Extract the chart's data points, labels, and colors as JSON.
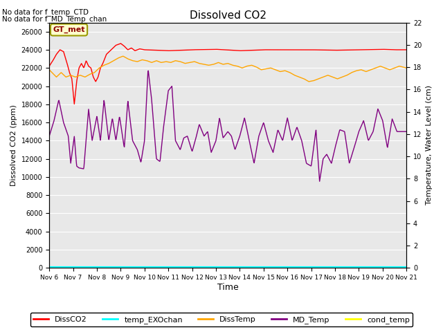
{
  "title": "Dissolved CO2",
  "text_no_data_1": "No data for f_temp_CTD",
  "text_no_data_2": "No data for f_MD_Temp_chan",
  "gt_met_label": "GT_met",
  "xlabel": "Time",
  "ylabel_left": "Dissolved CO2 (ppm)",
  "ylabel_right": "Temperature, Water Level (cm)",
  "xlim": [
    0,
    15
  ],
  "ylim_left": [
    0,
    27000
  ],
  "ylim_right": [
    0,
    22
  ],
  "yticks_left": [
    0,
    2000,
    4000,
    6000,
    8000,
    10000,
    12000,
    14000,
    16000,
    18000,
    20000,
    22000,
    24000,
    26000
  ],
  "yticks_right_vals": [
    0,
    2,
    4,
    6,
    8,
    10,
    12,
    14,
    16,
    18,
    20,
    22
  ],
  "x_ticks_labels": [
    "Nov 6",
    "Nov 7",
    "Nov 8",
    "Nov 9",
    "Nov 10",
    "Nov 11",
    "Nov 12",
    "Nov 13",
    "Nov 14",
    "Nov 15",
    "Nov 16",
    "Nov 17",
    "Nov 18",
    "Nov 19",
    "Nov 20",
    "Nov 21"
  ],
  "background_color": "#e8e8e8",
  "legend_entries": [
    "DissCO2",
    "temp_EXOchan",
    "DissTemp",
    "MD_Temp",
    "cond_temp"
  ],
  "legend_colors": [
    "red",
    "cyan",
    "orange",
    "purple",
    "yellow"
  ],
  "DissCO2_color": "red",
  "DissTemp_color": "orange",
  "MD_Temp_color": "purple",
  "cond_temp_color": "yellow",
  "temp_EXOchan_color": "cyan",
  "gt_met_facecolor": "#ffffcc",
  "gt_met_edgecolor": "#999900",
  "gt_met_textcolor": "#8b0000",
  "DissCO2_kp": [
    [
      0.0,
      22200
    ],
    [
      0.15,
      22800
    ],
    [
      0.3,
      23500
    ],
    [
      0.45,
      24000
    ],
    [
      0.6,
      23800
    ],
    [
      0.75,
      22500
    ],
    [
      0.85,
      21500
    ],
    [
      0.95,
      20800
    ],
    [
      1.05,
      18000
    ],
    [
      1.15,
      20500
    ],
    [
      1.25,
      22000
    ],
    [
      1.35,
      22500
    ],
    [
      1.45,
      22000
    ],
    [
      1.55,
      22800
    ],
    [
      1.65,
      22200
    ],
    [
      1.75,
      22000
    ],
    [
      1.85,
      21000
    ],
    [
      1.95,
      20500
    ],
    [
      2.05,
      21000
    ],
    [
      2.15,
      22000
    ],
    [
      2.25,
      22500
    ],
    [
      2.4,
      23500
    ],
    [
      2.6,
      24000
    ],
    [
      2.8,
      24500
    ],
    [
      3.0,
      24700
    ],
    [
      3.15,
      24400
    ],
    [
      3.3,
      24000
    ],
    [
      3.45,
      24200
    ],
    [
      3.6,
      23900
    ],
    [
      3.8,
      24100
    ],
    [
      4.0,
      24000
    ],
    [
      5.0,
      23900
    ],
    [
      6.0,
      24000
    ],
    [
      7.0,
      24050
    ],
    [
      8.0,
      23900
    ],
    [
      9.0,
      24000
    ],
    [
      10.0,
      24000
    ],
    [
      11.0,
      24000
    ],
    [
      12.0,
      23950
    ],
    [
      13.0,
      24000
    ],
    [
      14.0,
      24050
    ],
    [
      14.5,
      24000
    ],
    [
      15.0,
      24000
    ]
  ],
  "DissTemp_kp": [
    [
      0.0,
      21800
    ],
    [
      0.3,
      21000
    ],
    [
      0.5,
      21500
    ],
    [
      0.7,
      21000
    ],
    [
      0.9,
      21200
    ],
    [
      1.1,
      21000
    ],
    [
      1.3,
      21200
    ],
    [
      1.5,
      21000
    ],
    [
      1.7,
      21300
    ],
    [
      1.9,
      21500
    ],
    [
      2.1,
      22000
    ],
    [
      2.3,
      22300
    ],
    [
      2.5,
      22500
    ],
    [
      2.7,
      22800
    ],
    [
      2.9,
      23100
    ],
    [
      3.1,
      23300
    ],
    [
      3.3,
      23000
    ],
    [
      3.5,
      22800
    ],
    [
      3.7,
      22700
    ],
    [
      3.9,
      22900
    ],
    [
      4.1,
      22800
    ],
    [
      4.3,
      22600
    ],
    [
      4.5,
      22800
    ],
    [
      4.7,
      22600
    ],
    [
      4.9,
      22700
    ],
    [
      5.1,
      22600
    ],
    [
      5.3,
      22800
    ],
    [
      5.5,
      22700
    ],
    [
      5.7,
      22500
    ],
    [
      5.9,
      22600
    ],
    [
      6.1,
      22700
    ],
    [
      6.3,
      22500
    ],
    [
      6.5,
      22400
    ],
    [
      6.7,
      22300
    ],
    [
      6.9,
      22400
    ],
    [
      7.1,
      22600
    ],
    [
      7.3,
      22400
    ],
    [
      7.5,
      22500
    ],
    [
      7.7,
      22300
    ],
    [
      7.9,
      22200
    ],
    [
      8.1,
      22000
    ],
    [
      8.3,
      22200
    ],
    [
      8.5,
      22300
    ],
    [
      8.7,
      22100
    ],
    [
      8.9,
      21800
    ],
    [
      9.1,
      21900
    ],
    [
      9.3,
      22000
    ],
    [
      9.5,
      21800
    ],
    [
      9.7,
      21600
    ],
    [
      9.9,
      21700
    ],
    [
      10.1,
      21500
    ],
    [
      10.3,
      21200
    ],
    [
      10.5,
      21000
    ],
    [
      10.7,
      20800
    ],
    [
      10.9,
      20500
    ],
    [
      11.1,
      20600
    ],
    [
      11.3,
      20800
    ],
    [
      11.5,
      21000
    ],
    [
      11.7,
      21200
    ],
    [
      11.9,
      21000
    ],
    [
      12.1,
      20800
    ],
    [
      12.3,
      21000
    ],
    [
      12.5,
      21200
    ],
    [
      12.7,
      21500
    ],
    [
      12.9,
      21700
    ],
    [
      13.1,
      21800
    ],
    [
      13.3,
      21600
    ],
    [
      13.5,
      21800
    ],
    [
      13.7,
      22000
    ],
    [
      13.9,
      22200
    ],
    [
      14.1,
      22000
    ],
    [
      14.3,
      21800
    ],
    [
      14.5,
      22000
    ],
    [
      14.7,
      22200
    ],
    [
      15.0,
      22000
    ]
  ],
  "MD_Temp_kp": [
    [
      0.0,
      14500
    ],
    [
      0.2,
      16200
    ],
    [
      0.4,
      18500
    ],
    [
      0.6,
      16000
    ],
    [
      0.8,
      14500
    ],
    [
      0.9,
      11500
    ],
    [
      1.05,
      14500
    ],
    [
      1.15,
      11200
    ],
    [
      1.25,
      11000
    ],
    [
      1.45,
      10900
    ],
    [
      1.65,
      17500
    ],
    [
      1.8,
      14000
    ],
    [
      2.0,
      16700
    ],
    [
      2.15,
      14000
    ],
    [
      2.3,
      18500
    ],
    [
      2.5,
      14000
    ],
    [
      2.65,
      16500
    ],
    [
      2.8,
      14000
    ],
    [
      2.95,
      16700
    ],
    [
      3.15,
      13200
    ],
    [
      3.3,
      18400
    ],
    [
      3.5,
      14000
    ],
    [
      3.7,
      13000
    ],
    [
      3.85,
      11600
    ],
    [
      4.0,
      14000
    ],
    [
      4.15,
      21900
    ],
    [
      4.3,
      18500
    ],
    [
      4.5,
      12000
    ],
    [
      4.65,
      11700
    ],
    [
      4.8,
      15500
    ],
    [
      5.0,
      19500
    ],
    [
      5.15,
      20000
    ],
    [
      5.3,
      14000
    ],
    [
      5.5,
      13000
    ],
    [
      5.65,
      14300
    ],
    [
      5.8,
      14500
    ],
    [
      6.0,
      12800
    ],
    [
      6.15,
      14200
    ],
    [
      6.3,
      15800
    ],
    [
      6.5,
      14500
    ],
    [
      6.65,
      15000
    ],
    [
      6.8,
      12700
    ],
    [
      7.0,
      14000
    ],
    [
      7.15,
      16500
    ],
    [
      7.3,
      14300
    ],
    [
      7.5,
      15000
    ],
    [
      7.65,
      14500
    ],
    [
      7.8,
      13000
    ],
    [
      8.0,
      14500
    ],
    [
      8.2,
      16500
    ],
    [
      8.4,
      14000
    ],
    [
      8.6,
      11500
    ],
    [
      8.8,
      14500
    ],
    [
      9.0,
      16000
    ],
    [
      9.2,
      14000
    ],
    [
      9.4,
      12700
    ],
    [
      9.6,
      15200
    ],
    [
      9.8,
      14000
    ],
    [
      10.0,
      16500
    ],
    [
      10.2,
      14000
    ],
    [
      10.4,
      15500
    ],
    [
      10.6,
      14000
    ],
    [
      10.8,
      11500
    ],
    [
      11.0,
      11200
    ],
    [
      11.2,
      15200
    ],
    [
      11.35,
      9500
    ],
    [
      11.5,
      12000
    ],
    [
      11.65,
      12500
    ],
    [
      11.85,
      11500
    ],
    [
      12.0,
      13200
    ],
    [
      12.2,
      15200
    ],
    [
      12.4,
      15000
    ],
    [
      12.6,
      11500
    ],
    [
      12.8,
      13200
    ],
    [
      13.0,
      15000
    ],
    [
      13.2,
      16200
    ],
    [
      13.4,
      14000
    ],
    [
      13.6,
      15000
    ],
    [
      13.8,
      17500
    ],
    [
      14.0,
      16200
    ],
    [
      14.2,
      13200
    ],
    [
      14.4,
      16400
    ],
    [
      14.6,
      15000
    ],
    [
      15.0,
      15000
    ]
  ]
}
